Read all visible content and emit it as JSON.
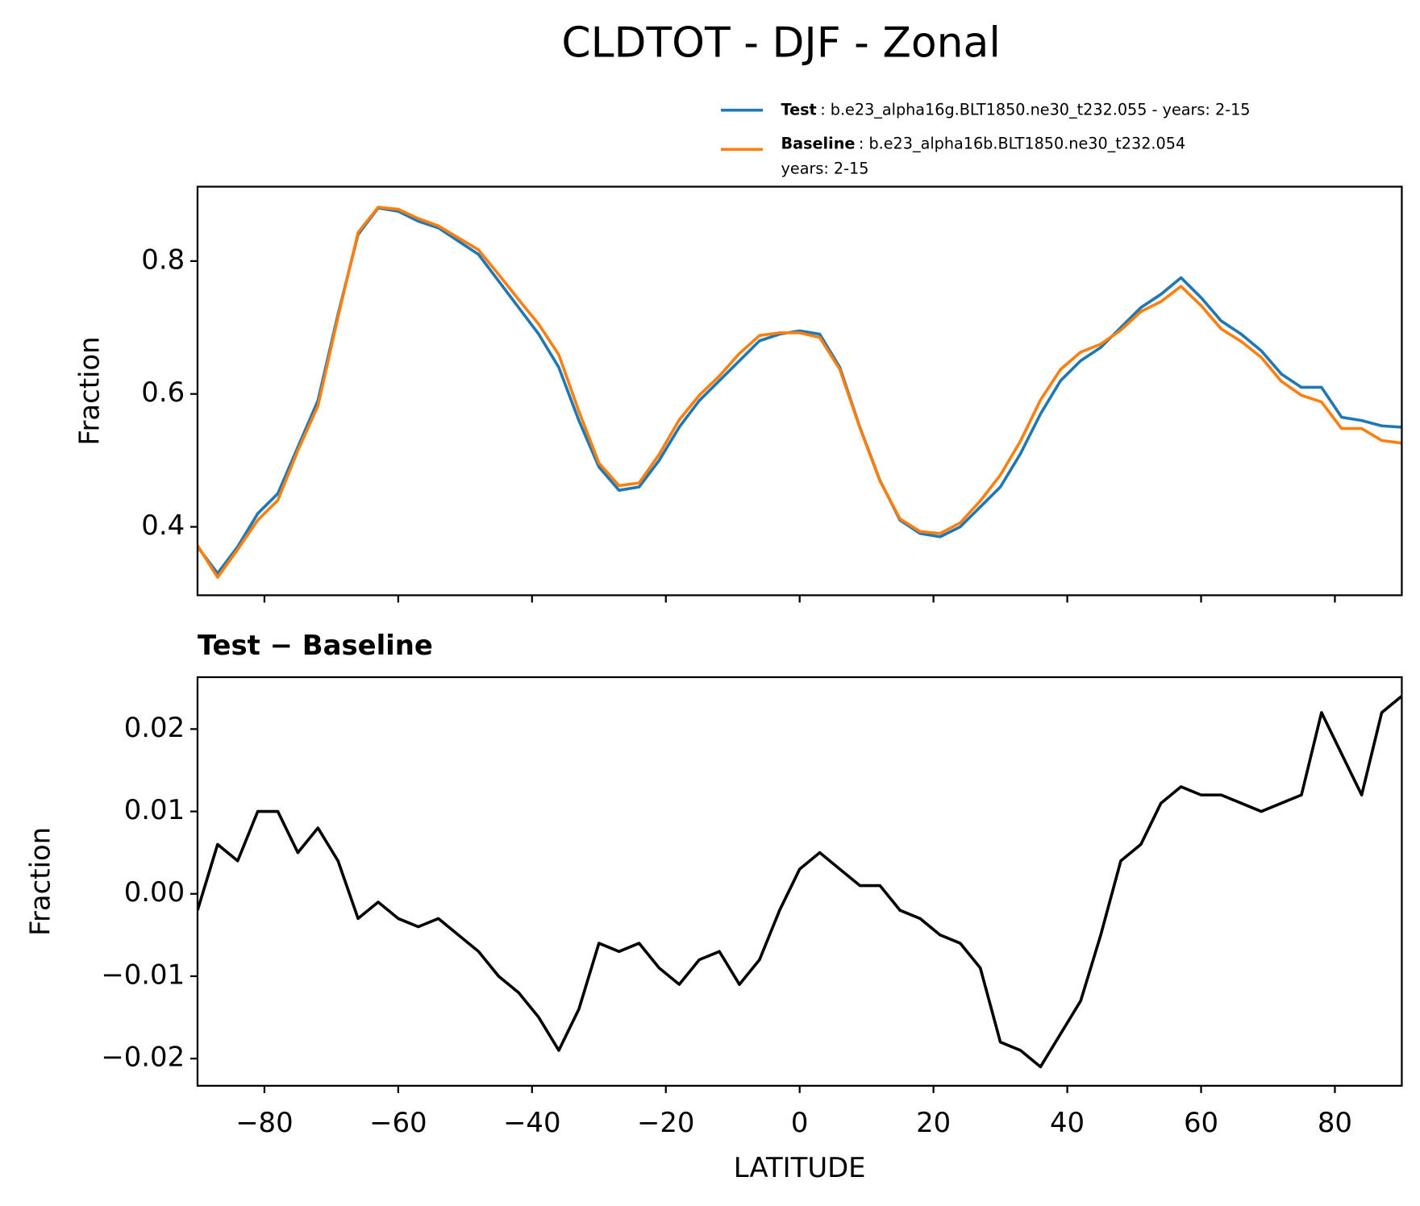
{
  "chart_data": [
    {
      "type": "line",
      "title": "CLDTOT - DJF - Zonal",
      "ylabel": "Fraction",
      "x": [
        -90,
        -87,
        -84,
        -81,
        -78,
        -75,
        -72,
        -69,
        -66,
        -63,
        -60,
        -57,
        -54,
        -51,
        -48,
        -45,
        -42,
        -39,
        -36,
        -33,
        -30,
        -27,
        -24,
        -21,
        -18,
        -15,
        -12,
        -9,
        -6,
        -3,
        0,
        3,
        6,
        9,
        12,
        15,
        18,
        21,
        24,
        27,
        30,
        33,
        36,
        39,
        42,
        45,
        48,
        51,
        54,
        57,
        60,
        63,
        66,
        69,
        72,
        75,
        78,
        81,
        84,
        87,
        90
      ],
      "series": [
        {
          "name": "Test",
          "description": [
            ": b.e23_alpha16g.BLT1850.ne30_t232.055 - years: 2-15"
          ],
          "color": "#1f77b4",
          "values": [
            0.37,
            0.33,
            0.37,
            0.42,
            0.45,
            0.52,
            0.59,
            0.72,
            0.84,
            0.88,
            0.875,
            0.86,
            0.85,
            0.83,
            0.81,
            0.77,
            0.73,
            0.69,
            0.64,
            0.56,
            0.49,
            0.455,
            0.46,
            0.5,
            0.55,
            0.59,
            0.62,
            0.65,
            0.68,
            0.69,
            0.695,
            0.69,
            0.64,
            0.55,
            0.47,
            0.41,
            0.39,
            0.385,
            0.4,
            0.43,
            0.46,
            0.51,
            0.57,
            0.62,
            0.65,
            0.67,
            0.7,
            0.73,
            0.75,
            0.775,
            0.745,
            0.71,
            0.69,
            0.665,
            0.63,
            0.61,
            0.61,
            0.565,
            0.56,
            0.552,
            0.55
          ]
        },
        {
          "name": "Baseline",
          "description": [
            ": b.e23_alpha16b.BLT1850.ne30_t232.054",
            "years: 2-15"
          ],
          "color": "#ff7f0e",
          "values": [
            0.372,
            0.324,
            0.366,
            0.41,
            0.44,
            0.515,
            0.582,
            0.716,
            0.843,
            0.881,
            0.878,
            0.864,
            0.853,
            0.835,
            0.817,
            0.78,
            0.742,
            0.705,
            0.659,
            0.574,
            0.496,
            0.462,
            0.466,
            0.509,
            0.561,
            0.598,
            0.627,
            0.661,
            0.688,
            0.692,
            0.692,
            0.685,
            0.637,
            0.549,
            0.469,
            0.412,
            0.393,
            0.39,
            0.406,
            0.439,
            0.478,
            0.529,
            0.591,
            0.637,
            0.663,
            0.675,
            0.696,
            0.724,
            0.739,
            0.762,
            0.733,
            0.698,
            0.679,
            0.655,
            0.619,
            0.598,
            0.588,
            0.548,
            0.548,
            0.53,
            0.526
          ]
        }
      ],
      "xlim": [
        -90,
        90
      ],
      "xticks": [
        -80,
        -60,
        -40,
        -20,
        0,
        20,
        40,
        60,
        80
      ],
      "ylim": [
        0.297,
        0.912
      ],
      "yticks": [
        0.4,
        0.6,
        0.8
      ]
    },
    {
      "type": "line",
      "title": "Test − Baseline",
      "xlabel": "LATITUDE",
      "ylabel": "Fraction",
      "x": [
        -90,
        -87,
        -84,
        -81,
        -78,
        -75,
        -72,
        -69,
        -66,
        -63,
        -60,
        -57,
        -54,
        -51,
        -48,
        -45,
        -42,
        -39,
        -36,
        -33,
        -30,
        -27,
        -24,
        -21,
        -18,
        -15,
        -12,
        -9,
        -6,
        -3,
        0,
        3,
        6,
        9,
        12,
        15,
        18,
        21,
        24,
        27,
        30,
        33,
        36,
        39,
        42,
        45,
        48,
        51,
        54,
        57,
        60,
        63,
        66,
        69,
        72,
        75,
        78,
        81,
        84,
        87,
        90
      ],
      "series": [
        {
          "color": "#000000",
          "values": [
            -0.002,
            0.006,
            0.004,
            0.01,
            0.01,
            0.005,
            0.008,
            0.004,
            -0.003,
            -0.001,
            -0.003,
            -0.004,
            -0.003,
            -0.005,
            -0.007,
            -0.01,
            -0.012,
            -0.015,
            -0.019,
            -0.014,
            -0.006,
            -0.007,
            -0.006,
            -0.009,
            -0.011,
            -0.008,
            -0.007,
            -0.011,
            -0.008,
            -0.002,
            0.003,
            0.005,
            0.003,
            0.001,
            0.001,
            -0.002,
            -0.003,
            -0.005,
            -0.006,
            -0.009,
            -0.018,
            -0.019,
            -0.021,
            -0.017,
            -0.013,
            -0.005,
            0.004,
            0.006,
            0.011,
            0.013,
            0.012,
            0.012,
            0.011,
            0.01,
            0.011,
            0.012,
            0.022,
            0.017,
            0.012,
            0.022,
            0.024
          ]
        }
      ],
      "xlim": [
        -90,
        90
      ],
      "xticks": [
        {
          "value": -80,
          "label": "−80"
        },
        {
          "value": -60,
          "label": "−60"
        },
        {
          "value": -40,
          "label": "−40"
        },
        {
          "value": -20,
          "label": "−20"
        },
        0,
        20,
        40,
        60,
        80
      ],
      "ylim": [
        -0.0233,
        0.0263
      ],
      "yticks": [
        {
          "value": -0.02,
          "label": "−0.02"
        },
        {
          "value": -0.01,
          "label": "−0.01"
        },
        {
          "value": 0,
          "label": "0.00"
        },
        0.01,
        0.02
      ]
    }
  ]
}
